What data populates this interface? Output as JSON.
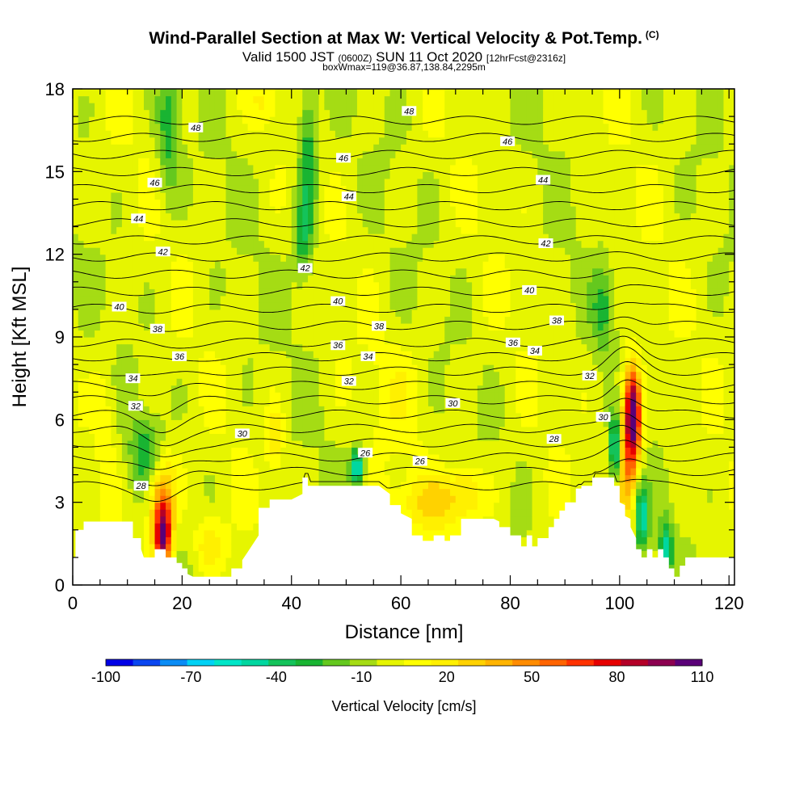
{
  "title": "Wind-Parallel Section at Max W: Vertical Velocity & Pot.Temp.",
  "title_mark": "(C)",
  "subtitle_main": "Valid 1500 JST",
  "subtitle_z": "(0600Z)",
  "subtitle_date": "SUN 11 Oct 2020",
  "subtitle_fcst": "[12hrFcst@2316z]",
  "subtitle2": "boxWmax=119@36.87,138.84,2295m",
  "chart_data": {
    "type": "heatmap",
    "xlabel": "Distance [nm]",
    "ylabel": "Height [Kft MSL]",
    "xlim": [
      0,
      121
    ],
    "ylim": [
      0,
      18
    ],
    "xticks": [
      0,
      20,
      40,
      60,
      80,
      100,
      120
    ],
    "yticks": [
      0,
      3,
      6,
      9,
      12,
      15,
      18
    ],
    "colorbar": {
      "label": "Vertical Velocity [cm/s]",
      "min": -100,
      "max": 110,
      "step": 10,
      "tick_values": [
        -100,
        -70,
        -40,
        -10,
        20,
        50,
        80,
        110
      ],
      "tick_labels": [
        "-100",
        "-70",
        "-40",
        "-10",
        "20",
        "50",
        "80",
        "110"
      ],
      "colors": [
        "#0000e6",
        "#0a46f0",
        "#0a8cf5",
        "#00d2f5",
        "#00e6c8",
        "#00d7a0",
        "#14c35a",
        "#19b432",
        "#64c81e",
        "#a5dc14",
        "#e6f500",
        "#ffff00",
        "#fff000",
        "#ffd200",
        "#ffb400",
        "#ff8c00",
        "#ff6400",
        "#ff3200",
        "#e60000",
        "#b40028",
        "#8c0050",
        "#5a0078"
      ]
    },
    "terrain": [
      [
        0,
        1
      ],
      [
        0.5,
        1
      ],
      [
        0.5,
        2
      ],
      [
        2,
        2
      ],
      [
        2,
        2.3
      ],
      [
        4,
        2.3
      ],
      [
        5,
        2.3
      ],
      [
        7,
        2.3
      ],
      [
        8,
        2.3
      ],
      [
        11,
        2.3
      ],
      [
        11,
        1.7
      ],
      [
        12.5,
        1.7
      ],
      [
        12.5,
        1.3
      ],
      [
        13,
        1
      ],
      [
        15,
        1
      ],
      [
        15,
        1.3
      ],
      [
        17,
        1.3
      ],
      [
        17,
        1
      ],
      [
        19,
        1
      ],
      [
        19,
        0.8
      ],
      [
        20,
        0.8
      ],
      [
        20,
        0.6
      ],
      [
        21,
        0.6
      ],
      [
        21,
        0.4
      ],
      [
        22,
        0.3
      ],
      [
        26,
        0.3
      ],
      [
        27,
        0.3
      ],
      [
        29,
        0.3
      ],
      [
        29,
        0.6
      ],
      [
        31,
        0.6
      ],
      [
        31,
        0.9
      ],
      [
        32,
        1.2
      ],
      [
        34,
        1.8
      ],
      [
        34,
        2.8
      ],
      [
        36,
        2.8
      ],
      [
        36,
        3.1
      ],
      [
        40,
        3.1
      ],
      [
        42,
        3.3
      ],
      [
        42,
        3.9
      ],
      [
        43,
        3.9
      ],
      [
        43,
        3.6
      ],
      [
        46,
        3.6
      ],
      [
        52,
        3.6
      ],
      [
        56,
        3.6
      ],
      [
        58,
        3.3
      ],
      [
        58,
        2.9
      ],
      [
        60,
        2.9
      ],
      [
        60,
        2.6
      ],
      [
        62,
        2.4
      ],
      [
        62,
        1.8
      ],
      [
        64,
        1.8
      ],
      [
        64,
        1.6
      ],
      [
        65,
        1.6
      ],
      [
        66,
        1.6
      ],
      [
        66,
        1.8
      ],
      [
        68,
        1.8
      ],
      [
        68,
        1.6
      ],
      [
        69,
        1.6
      ],
      [
        69,
        1.8
      ],
      [
        71,
        1.8
      ],
      [
        71,
        2.4
      ],
      [
        72,
        2.4
      ],
      [
        77,
        2.4
      ],
      [
        78,
        2.3
      ],
      [
        78,
        2.1
      ],
      [
        80,
        2.1
      ],
      [
        80,
        1.8
      ],
      [
        82,
        1.8
      ],
      [
        82,
        1.4
      ],
      [
        83,
        1.4
      ],
      [
        83,
        1.8
      ],
      [
        84,
        1.8
      ],
      [
        84,
        1.4
      ],
      [
        85,
        1.4
      ],
      [
        85,
        1.7
      ],
      [
        87,
        1.7
      ],
      [
        87,
        2.1
      ],
      [
        88,
        2.1
      ],
      [
        88,
        2.4
      ],
      [
        89,
        2.4
      ],
      [
        89,
        2.7
      ],
      [
        90,
        2.7
      ],
      [
        90,
        3
      ],
      [
        92,
        3
      ],
      [
        92,
        3.5
      ],
      [
        93,
        3.5
      ],
      [
        93,
        3.6
      ],
      [
        95,
        3.6
      ],
      [
        95,
        3.9
      ],
      [
        97,
        3.9
      ],
      [
        99,
        3.9
      ],
      [
        99,
        3.6
      ],
      [
        100,
        3.6
      ],
      [
        100,
        3
      ],
      [
        101,
        2.9
      ],
      [
        101,
        2.5
      ],
      [
        102,
        2.4
      ],
      [
        102,
        2.1
      ],
      [
        103,
        1.7
      ],
      [
        103,
        1.3
      ],
      [
        104,
        1.3
      ],
      [
        104,
        1
      ],
      [
        105,
        1
      ],
      [
        105,
        1.3
      ],
      [
        106,
        1.3
      ],
      [
        106,
        1
      ],
      [
        107,
        1
      ],
      [
        107,
        1.3
      ],
      [
        108,
        1.3
      ],
      [
        108,
        1
      ],
      [
        109,
        1
      ],
      [
        109,
        0.6
      ],
      [
        110,
        0.6
      ],
      [
        110,
        0.3
      ],
      [
        111,
        0.3
      ],
      [
        111,
        0.7
      ],
      [
        112,
        0.7
      ],
      [
        112,
        1
      ],
      [
        115,
        1
      ],
      [
        120,
        1
      ],
      [
        121,
        1
      ]
    ],
    "isentropes": {
      "levels": [
        26,
        27,
        28,
        29,
        30,
        31,
        32,
        33,
        34,
        35,
        36,
        37,
        38,
        39,
        40,
        41,
        42,
        43,
        44,
        45,
        46,
        47,
        48,
        49
      ],
      "labels": [
        {
          "x": 12.5,
          "y": 3.6,
          "text": "28"
        },
        {
          "x": 31,
          "y": 5.5,
          "text": "30"
        },
        {
          "x": 11.5,
          "y": 6.5,
          "text": "32"
        },
        {
          "x": 11,
          "y": 7.5,
          "text": "34"
        },
        {
          "x": 19.5,
          "y": 8.3,
          "text": "36"
        },
        {
          "x": 15.5,
          "y": 9.3,
          "text": "38"
        },
        {
          "x": 8.5,
          "y": 10.1,
          "text": "40"
        },
        {
          "x": 16.5,
          "y": 12.1,
          "text": "42"
        },
        {
          "x": 12,
          "y": 13.3,
          "text": "44"
        },
        {
          "x": 15,
          "y": 14.6,
          "text": "46"
        },
        {
          "x": 22.5,
          "y": 16.6,
          "text": "48"
        },
        {
          "x": 53.5,
          "y": 4.8,
          "text": "26"
        },
        {
          "x": 63.5,
          "y": 4.5,
          "text": "26"
        },
        {
          "x": 88,
          "y": 5.3,
          "text": "28"
        },
        {
          "x": 97,
          "y": 6.1,
          "text": "30"
        },
        {
          "x": 69.5,
          "y": 6.6,
          "text": "30"
        },
        {
          "x": 50.5,
          "y": 7.4,
          "text": "32"
        },
        {
          "x": 94.5,
          "y": 7.6,
          "text": "32"
        },
        {
          "x": 54,
          "y": 8.3,
          "text": "34"
        },
        {
          "x": 84.5,
          "y": 8.5,
          "text": "34"
        },
        {
          "x": 48.5,
          "y": 8.7,
          "text": "36"
        },
        {
          "x": 80.5,
          "y": 8.8,
          "text": "36"
        },
        {
          "x": 56,
          "y": 9.4,
          "text": "38"
        },
        {
          "x": 88.5,
          "y": 9.6,
          "text": "38"
        },
        {
          "x": 48.5,
          "y": 10.3,
          "text": "40"
        },
        {
          "x": 83.5,
          "y": 10.7,
          "text": "40"
        },
        {
          "x": 42.5,
          "y": 11.5,
          "text": "42"
        },
        {
          "x": 86.5,
          "y": 12.4,
          "text": "42"
        },
        {
          "x": 50.5,
          "y": 14.1,
          "text": "44"
        },
        {
          "x": 86,
          "y": 14.7,
          "text": "44"
        },
        {
          "x": 49.5,
          "y": 15.5,
          "text": "46"
        },
        {
          "x": 79.5,
          "y": 16.1,
          "text": "46"
        },
        {
          "x": 61.5,
          "y": 17.2,
          "text": "48"
        }
      ]
    },
    "w_features": [
      {
        "x": 16.5,
        "y": 1.8,
        "w": 110,
        "sx": 1.6,
        "sy": 1.2
      },
      {
        "x": 16,
        "y": 3.5,
        "w": 45,
        "sx": 3,
        "sy": 1.5
      },
      {
        "x": 13.5,
        "y": 4.6,
        "w": -35,
        "sx": 3,
        "sy": 1.4
      },
      {
        "x": 102.5,
        "y": 6.3,
        "w": 95,
        "sx": 1.3,
        "sy": 1.6
      },
      {
        "x": 101.5,
        "y": 5,
        "w": 55,
        "sx": 2.2,
        "sy": 2.5
      },
      {
        "x": 99.2,
        "y": 5,
        "w": -70,
        "sx": 1,
        "sy": 1.3
      },
      {
        "x": 104,
        "y": 2.5,
        "w": -55,
        "sx": 1.3,
        "sy": 1.2
      },
      {
        "x": 108.5,
        "y": 1.4,
        "w": -45,
        "sx": 1.2,
        "sy": 1
      },
      {
        "x": 52,
        "y": 4.3,
        "w": -60,
        "sx": 1.2,
        "sy": 0.7
      },
      {
        "x": 43,
        "y": 15.5,
        "w": -35,
        "sx": 1.8,
        "sy": 3
      },
      {
        "x": 42,
        "y": 12.5,
        "w": -25,
        "sx": 1.8,
        "sy": 1.5
      },
      {
        "x": 17.5,
        "y": 16.5,
        "w": -30,
        "sx": 2,
        "sy": 2.5
      },
      {
        "x": 67,
        "y": 3,
        "w": 25,
        "sx": 8,
        "sy": 1
      },
      {
        "x": 72,
        "y": 3.6,
        "w": 20,
        "sx": 3,
        "sy": 1
      },
      {
        "x": 25,
        "y": 1.5,
        "w": 25,
        "sx": 3,
        "sy": 1
      },
      {
        "x": 37,
        "y": 5.3,
        "w": 25,
        "sx": 1.5,
        "sy": 1.3
      },
      {
        "x": 35,
        "y": 17.5,
        "w": 15,
        "sx": 2.5,
        "sy": 0.8
      },
      {
        "x": 97,
        "y": 10,
        "w": -25,
        "sx": 2,
        "sy": 1.5
      },
      {
        "x": 6,
        "y": 6,
        "w": 12,
        "sx": 2,
        "sy": 3
      },
      {
        "x": 60,
        "y": 7,
        "w": 10,
        "sx": 6,
        "sy": 2
      }
    ]
  }
}
